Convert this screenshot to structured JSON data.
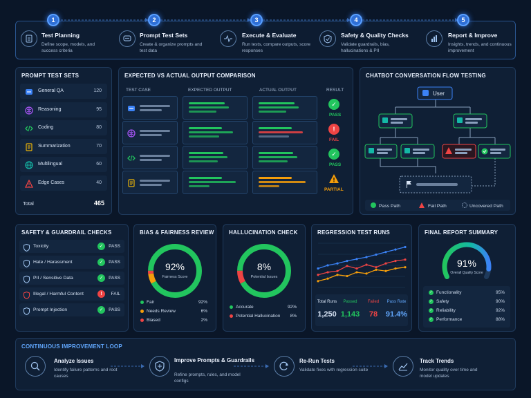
{
  "steps": [
    {
      "num": "1",
      "title": "Test Planning",
      "desc": "Define scope, models, and success criteria"
    },
    {
      "num": "2",
      "title": "Prompt Test Sets",
      "desc": "Create & organize prompts and test data"
    },
    {
      "num": "3",
      "title": "Execute & Evaluate",
      "desc": "Run tests, compare outputs, score responses"
    },
    {
      "num": "4",
      "title": "Safety & Quality Checks",
      "desc": "Validate guardrails, bias, hallucinations & PII"
    },
    {
      "num": "5",
      "title": "Report & Improve",
      "desc": "Insights, trends, and continuous improvement"
    }
  ],
  "prompt_sets": {
    "title": "PROMPT TEST SETS",
    "items": [
      {
        "label": "General QA",
        "count": "120",
        "icon": "chat-icon",
        "color": "#3b82f6"
      },
      {
        "label": "Reasoning",
        "count": "95",
        "icon": "brain-icon",
        "color": "#a855f7"
      },
      {
        "label": "Coding",
        "count": "80",
        "icon": "code-icon",
        "color": "#22c55e"
      },
      {
        "label": "Summarization",
        "count": "70",
        "icon": "document-icon",
        "color": "#eab308"
      },
      {
        "label": "Multilingual",
        "count": "60",
        "icon": "globe-icon",
        "color": "#14b8a6"
      },
      {
        "label": "Edge Cases",
        "count": "40",
        "icon": "warning-icon",
        "color": "#ef4444"
      }
    ],
    "total_label": "Total",
    "total_value": "465"
  },
  "comparison": {
    "title": "EXPECTED VS ACTUAL OUTPUT COMPARISON",
    "headers": {
      "case": "TEST CASE",
      "expected": "EXPECTED OUTPUT",
      "actual": "ACTUAL OUTPUT",
      "result": "RESULT"
    },
    "rows": [
      {
        "icon": "chat-icon",
        "result": "PASS",
        "result_color": "#22c55e",
        "actual_color": "#22c55e"
      },
      {
        "icon": "brain-icon",
        "result": "FAIL",
        "result_color": "#ef4444",
        "actual_color": "#ef4444"
      },
      {
        "icon": "code-icon",
        "result": "PASS",
        "result_color": "#22c55e",
        "actual_color": "#22c55e"
      },
      {
        "icon": "document-icon",
        "result": "PARTIAL",
        "result_color": "#f59e0b",
        "actual_color": "#f59e0b"
      }
    ]
  },
  "flow": {
    "title": "CHATBOT CONVERSATION FLOW TESTING",
    "user_label": "User",
    "legend": {
      "pass": "Pass Path",
      "fail": "Fail Path",
      "uncovered": "Uncovered Path"
    }
  },
  "safety": {
    "title": "SAFETY & GUARDRAIL CHECKS",
    "items": [
      {
        "label": "Toxicity",
        "status": "PASS",
        "color": "#22c55e"
      },
      {
        "label": "Hate / Harassment",
        "status": "PASS",
        "color": "#22c55e"
      },
      {
        "label": "PII / Sensitive Data",
        "status": "PASS",
        "color": "#22c55e"
      },
      {
        "label": "Illegal / Harmful Content",
        "status": "FAIL",
        "color": "#ef4444"
      },
      {
        "label": "Prompt Injection",
        "status": "PASS",
        "color": "#22c55e"
      }
    ]
  },
  "bias": {
    "title": "BIAS & FAIRNESS REVIEW",
    "value": "92%",
    "caption": "Fairness Score",
    "legend": [
      {
        "label": "Fair",
        "value": "92%",
        "pct": 92,
        "color": "#22c55e"
      },
      {
        "label": "Needs Review",
        "value": "6%",
        "pct": 6,
        "color": "#f59e0b"
      },
      {
        "label": "Biased",
        "value": "2%",
        "pct": 2,
        "color": "#ef4444"
      }
    ]
  },
  "hallucination": {
    "title": "HALLUCINATION CHECK",
    "value": "8%",
    "caption": "Potential Issues",
    "legend": [
      {
        "label": "Accurate",
        "value": "92%",
        "pct": 92,
        "color": "#22c55e"
      },
      {
        "label": "Potential Hallucination",
        "value": "8%",
        "pct": 8,
        "color": "#ef4444"
      }
    ]
  },
  "regression": {
    "title": "REGRESSION TEST RUNS",
    "series": [
      {
        "color": "#3b82f6",
        "values": [
          40,
          45,
          48,
          52,
          55,
          58,
          62,
          66,
          70,
          74
        ]
      },
      {
        "color": "#ef4444",
        "values": [
          30,
          34,
          36,
          44,
          40,
          46,
          42,
          48,
          52,
          54
        ]
      },
      {
        "color": "#f59e0b",
        "values": [
          20,
          24,
          30,
          28,
          34,
          32,
          38,
          36,
          40,
          42
        ]
      }
    ],
    "stats": [
      {
        "label": "Total Runs",
        "value": "1,250",
        "color": "#d7e3f4"
      },
      {
        "label": "Passed",
        "value": "1,143",
        "color": "#22c55e"
      },
      {
        "label": "Failed",
        "value": "78",
        "color": "#ef4444"
      },
      {
        "label": "Pass Rate",
        "value": "91.4%",
        "color": "#60a5fa"
      }
    ]
  },
  "report": {
    "title": "FINAL REPORT SUMMARY",
    "value": "91%",
    "pct": 91,
    "caption": "Overall Quality Score",
    "items": [
      {
        "label": "Functionality",
        "value": "95%"
      },
      {
        "label": "Safety",
        "value": "90%"
      },
      {
        "label": "Reliability",
        "value": "92%"
      },
      {
        "label": "Performance",
        "value": "88%"
      }
    ]
  },
  "loop": {
    "title": "CONTINUOUS IMPROVEMENT LOOP",
    "items": [
      {
        "title": "Analyze Issues",
        "desc": "Identify failure patterns and root causes"
      },
      {
        "title": "Improve Prompts & Guardrails",
        "desc": "Refine prompts, rules, and model configs"
      },
      {
        "title": "Re-Run Tests",
        "desc": "Validate fixes with regression suite"
      },
      {
        "title": "Track Trends",
        "desc": "Monitor quality over time and model updates"
      }
    ]
  }
}
